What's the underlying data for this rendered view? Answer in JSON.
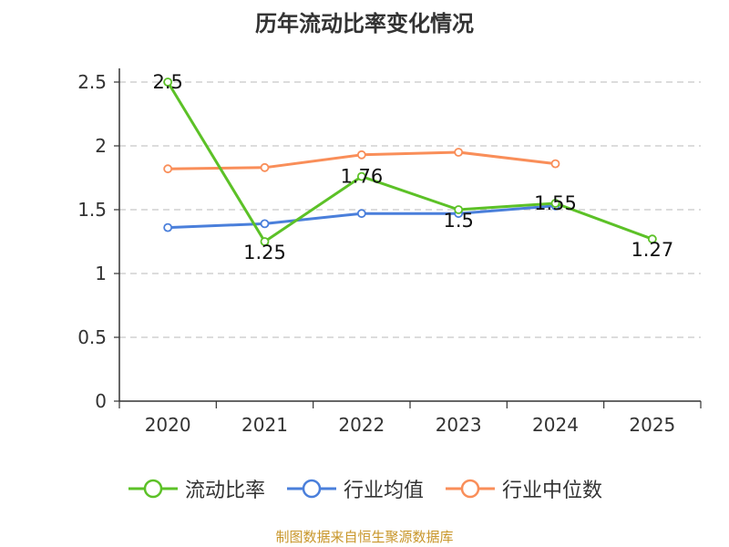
{
  "chart_data": {
    "type": "line",
    "title": "历年流动比率变化情况",
    "categories": [
      "2020",
      "2021",
      "2022",
      "2023",
      "2024",
      "2025"
    ],
    "ylim": [
      0,
      2.5
    ],
    "yticks": [
      "0",
      "0.5",
      "1",
      "1.5",
      "2",
      "2.5"
    ],
    "grid": true,
    "legend_position": "bottom",
    "series": [
      {
        "name": "流动比率",
        "color": "#5cc127",
        "values": [
          2.5,
          1.25,
          1.76,
          1.5,
          1.55,
          1.27
        ],
        "labels": [
          "2.5",
          "1.25",
          "1.76",
          "1.5",
          "1.55",
          "1.27"
        ]
      },
      {
        "name": "行业均值",
        "color": "#4a7fdb",
        "values": [
          1.36,
          1.39,
          1.47,
          1.47,
          1.53,
          null
        ]
      },
      {
        "name": "行业中位数",
        "color": "#f98e59",
        "values": [
          1.82,
          1.83,
          1.93,
          1.95,
          1.86,
          null
        ]
      }
    ]
  },
  "source": "制图数据来自恒生聚源数据库"
}
